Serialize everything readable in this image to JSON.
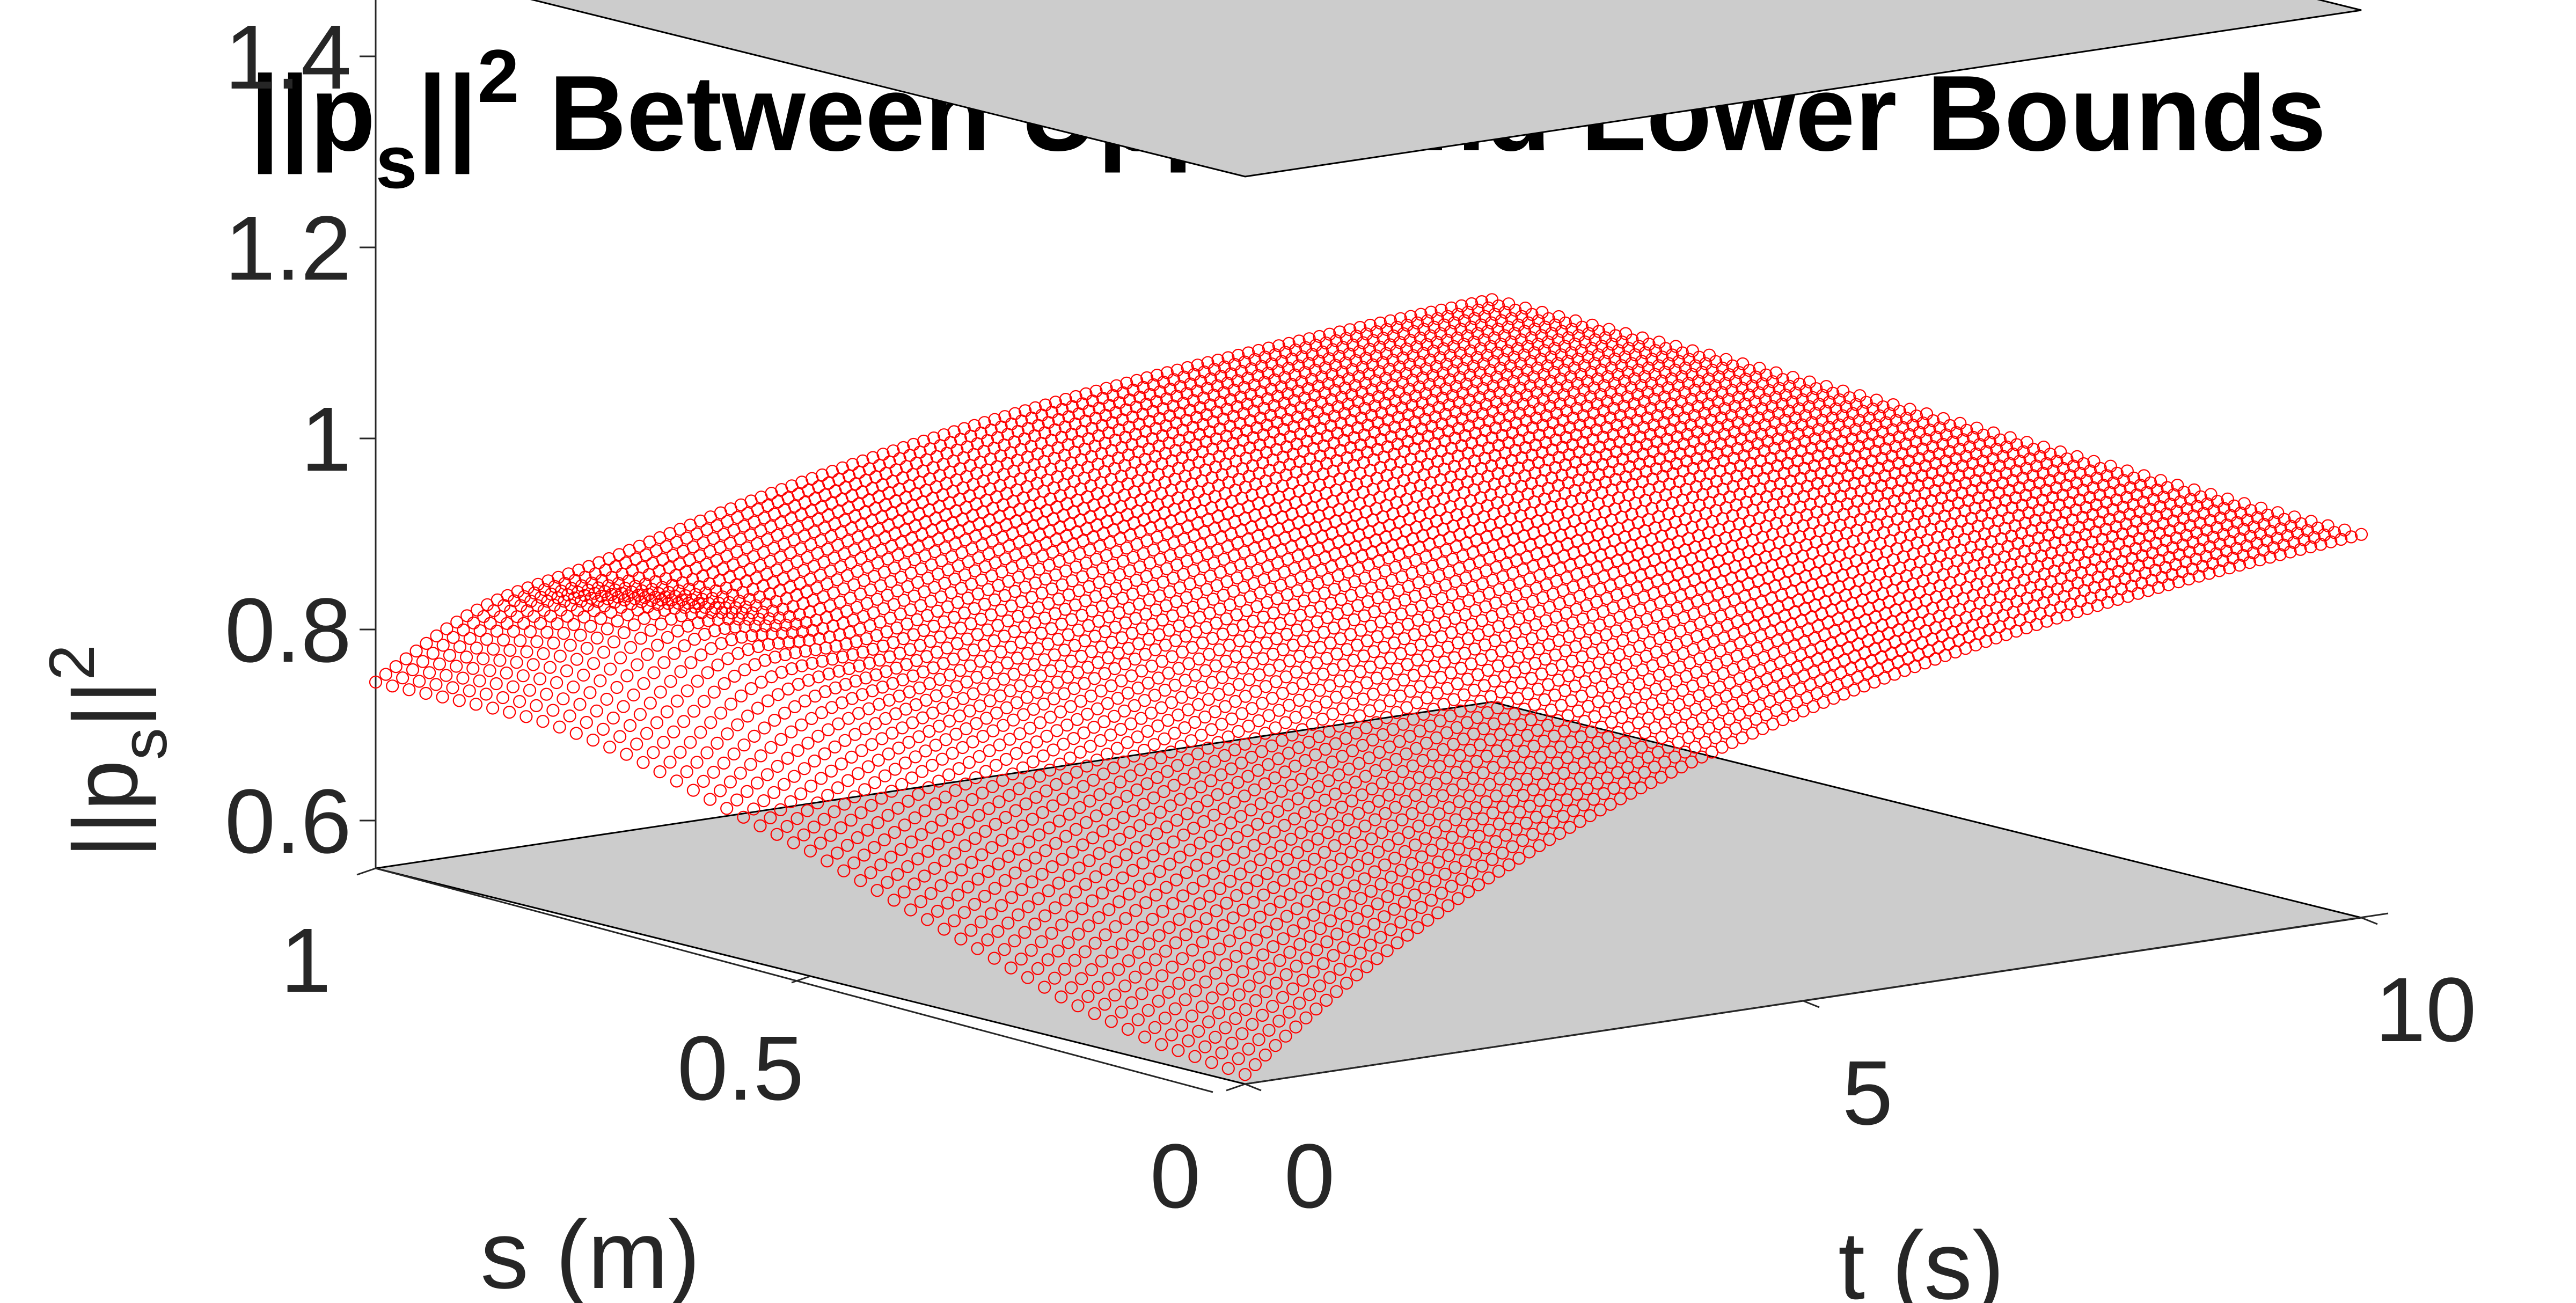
{
  "chart_data": {
    "type": "surface3d",
    "title": {
      "prefix": "||p",
      "sub": "s",
      "mid": "||",
      "sup": "2",
      "suffix": " Between Upper and Lower Bounds"
    },
    "xlabel": "t (s)",
    "ylabel": "s (m)",
    "zlabel": {
      "prefix": "||p",
      "sub": "s",
      "mid": "||",
      "sup": "2"
    },
    "x_ticks": [
      "0",
      "5",
      "10"
    ],
    "y_ticks": [
      "0",
      "0.5",
      "1"
    ],
    "z_ticks": [
      "0.6",
      "0.8",
      "1",
      "1.2",
      "1.4"
    ],
    "xlim": [
      0,
      10
    ],
    "ylim": [
      0,
      1
    ],
    "zlim": [
      0.55,
      1.55
    ],
    "grid": false,
    "series": [
      {
        "kind": "plane",
        "z": 1.5,
        "color": "#cccccc",
        "edge_color": "#000000"
      },
      {
        "kind": "plane",
        "z": 0.55,
        "color": "#cccccc",
        "edge_color": "#000000"
      },
      {
        "kind": "surface",
        "marker": "circle",
        "color": "#ff0000",
        "profile": {
          "s_at_t0": [
            0,
            0.1,
            0.2,
            0.3,
            0.4,
            0.5,
            0.6,
            0.7,
            0.8,
            0.9,
            1
          ],
          "z_at_t0": [
            0.56,
            0.57,
            0.59,
            0.62,
            0.65,
            0.68,
            0.7,
            0.72,
            0.73,
            0.735,
            0.74
          ],
          "z_at_t10": 1.0
        }
      }
    ]
  }
}
